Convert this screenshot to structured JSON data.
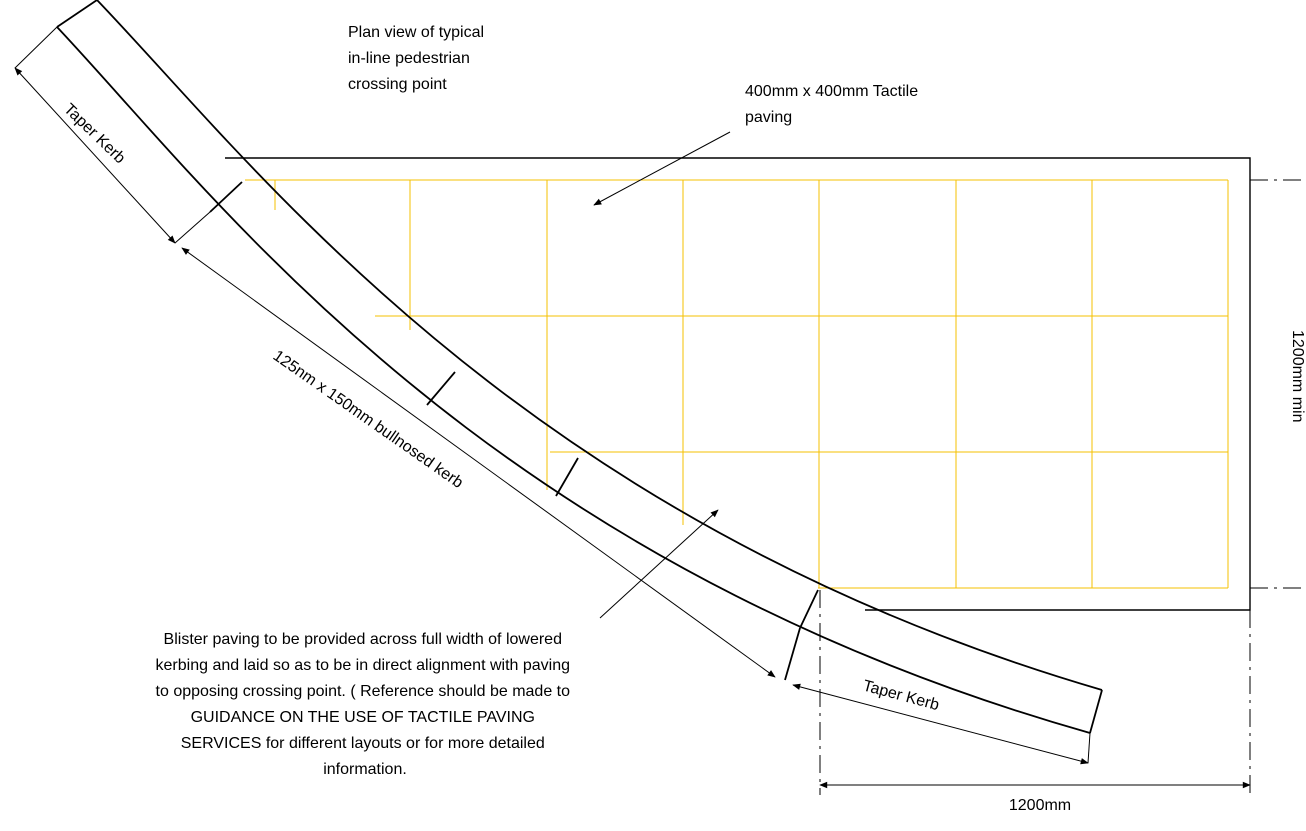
{
  "labels": {
    "plan_view": [
      "Plan view of typical",
      "in-line pedestrian",
      "crossing point"
    ],
    "tactile": [
      "400mm x 400mm Tactile",
      "paving"
    ],
    "taper_kerb_top": "Taper Kerb",
    "bullnosed_kerb": "125nm x 150mm bullnosed kerb",
    "taper_kerb_bottom": "Taper Kerb",
    "dim_width": "1200mm",
    "dim_right": "1200mm min",
    "blister_note": [
      "Blister paving to be provided across full width of lowered",
      "kerbing and laid so as to be in direct alignment with paving",
      "to opposing crossing point. ( Reference should be made to",
      "GUIDANCE ON THE USE OF TACTILE PAVING",
      "SERVICES for different layouts or for more detailed",
      "information."
    ]
  },
  "colors": {
    "tactile_grid": "#f5c000",
    "line": "#000000"
  }
}
